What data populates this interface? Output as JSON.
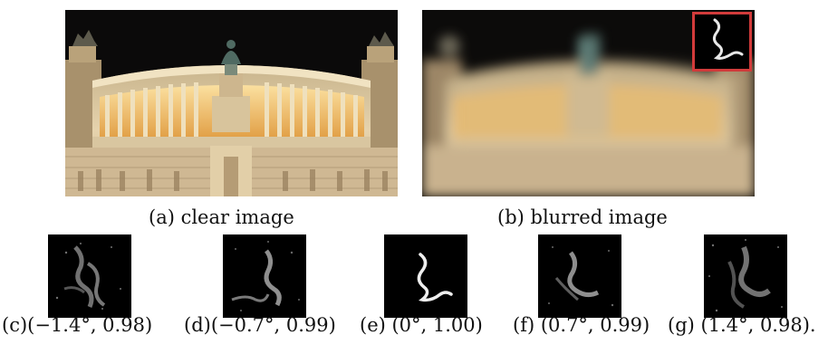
{
  "figure": {
    "panel_a": {
      "caption": "(a) clear image"
    },
    "panel_b": {
      "caption": "(b) blurred image"
    },
    "kernels": [
      {
        "caption": "(c)(−1.4°, 0.98)"
      },
      {
        "caption": "(d)(−0.7°, 0.99)"
      },
      {
        "caption": "(e) (0°, 1.00)"
      },
      {
        "caption": "(f) (0.7°, 0.99)"
      },
      {
        "caption": "(g) (1.4°, 0.98)."
      }
    ],
    "colors": {
      "inset_border": "#d23b3b",
      "sky": "#0b0a0a",
      "stone": "#e8d6b4",
      "light": "#f4c46a"
    }
  }
}
